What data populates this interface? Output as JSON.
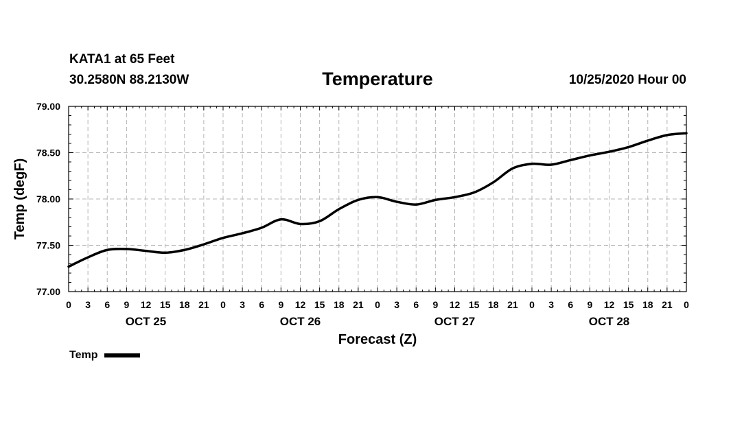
{
  "header": {
    "station": "KATA1 at 65 Feet",
    "coords": "30.2580N 88.2130W",
    "title": "Temperature",
    "issued": "10/25/2020 Hour 00"
  },
  "chart_data": {
    "type": "line",
    "title": "Temperature",
    "xlabel": "Forecast (Z)",
    "ylabel": "Temp (degF)",
    "ylim": [
      77.0,
      79.0
    ],
    "yticks": [
      "77.00",
      "77.50",
      "78.00",
      "78.50",
      "79.00"
    ],
    "xlim": [
      0,
      96
    ],
    "xtick_labels": [
      "0",
      "3",
      "6",
      "9",
      "12",
      "15",
      "18",
      "21",
      "0",
      "3",
      "6",
      "9",
      "12",
      "15",
      "18",
      "21",
      "0",
      "3",
      "6",
      "9",
      "12",
      "15",
      "18",
      "21",
      "0",
      "3",
      "6",
      "9",
      "12",
      "15",
      "18",
      "21",
      "0"
    ],
    "day_labels": [
      {
        "label": "OCT 25",
        "hour": 12
      },
      {
        "label": "OCT 26",
        "hour": 36
      },
      {
        "label": "OCT 27",
        "hour": 60
      },
      {
        "label": "OCT 28",
        "hour": 84
      }
    ],
    "grid": true,
    "legend_position": "bottom-left",
    "series": [
      {
        "name": "Temp",
        "color": "#000000",
        "x": [
          0,
          3,
          6,
          9,
          12,
          15,
          18,
          21,
          24,
          27,
          30,
          33,
          36,
          39,
          42,
          45,
          48,
          51,
          54,
          57,
          60,
          63,
          66,
          69,
          72,
          75,
          78,
          81,
          84,
          87,
          90,
          93,
          96
        ],
        "values": [
          77.27,
          77.37,
          77.45,
          77.46,
          77.44,
          77.42,
          77.45,
          77.51,
          77.58,
          77.63,
          77.69,
          77.78,
          77.73,
          77.76,
          77.89,
          77.99,
          78.02,
          77.97,
          77.94,
          77.99,
          78.02,
          78.07,
          78.18,
          78.33,
          78.38,
          78.37,
          78.42,
          78.47,
          78.51,
          78.56,
          78.63,
          78.69,
          78.71
        ]
      }
    ]
  }
}
